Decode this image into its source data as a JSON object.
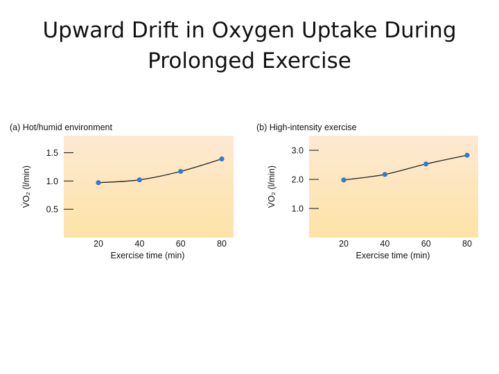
{
  "slide": {
    "title_line1": "Upward Drift in Oxygen Uptake During",
    "title_line2": "Prolonged Exercise"
  },
  "colors": {
    "panel_top": "#fde9d3",
    "panel_bottom": "#fde3a6",
    "marker": "#3a78c2",
    "line": "#222222"
  },
  "chart_data": [
    {
      "type": "line",
      "title": "(a) Hot/humid environment",
      "xlabel": "Exercise time (min)",
      "ylabel": "V̇O₂ (l/min)",
      "x": [
        20,
        40,
        60,
        80
      ],
      "values": [
        0.97,
        1.02,
        1.17,
        1.39
      ],
      "xlim": [
        0,
        85
      ],
      "ylim": [
        0,
        1.8
      ],
      "x_ticks": [
        "20",
        "40",
        "60",
        "80"
      ],
      "y_ticks": [
        {
          "value": 0.5,
          "label": "0.5"
        },
        {
          "value": 1.0,
          "label": "1.0"
        },
        {
          "value": 1.5,
          "label": "1.5"
        }
      ],
      "grid": false
    },
    {
      "type": "line",
      "title": "(b) High-intensity exercise",
      "xlabel": "Exercise time (min)",
      "ylabel": "V̇O₂ (l/min)",
      "x": [
        20,
        40,
        60,
        80
      ],
      "values": [
        1.98,
        2.17,
        2.53,
        2.83
      ],
      "xlim": [
        0,
        85
      ],
      "ylim": [
        0,
        3.5
      ],
      "x_ticks": [
        "20",
        "40",
        "60",
        "80"
      ],
      "y_ticks": [
        {
          "value": 1.0,
          "label": "1.0"
        },
        {
          "value": 2.0,
          "label": "2.0"
        },
        {
          "value": 3.0,
          "label": "3.0"
        }
      ],
      "grid": false
    }
  ]
}
